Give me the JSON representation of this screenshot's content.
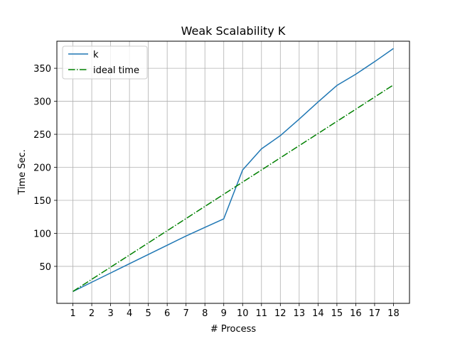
{
  "chart_data": {
    "type": "line",
    "title": "Weak Scalability K",
    "xlabel": "# Process",
    "ylabel": "Time Sec.",
    "x": [
      1,
      2,
      3,
      4,
      5,
      6,
      7,
      8,
      9,
      10,
      11,
      12,
      13,
      14,
      15,
      16,
      17,
      18
    ],
    "xticks": [
      "1",
      "2",
      "3",
      "4",
      "5",
      "6",
      "7",
      "8",
      "9",
      "10",
      "11",
      "12",
      "13",
      "14",
      "15",
      "16",
      "17",
      "18"
    ],
    "yticks": [
      50,
      100,
      150,
      200,
      250,
      300,
      350
    ],
    "xlim": [
      0.15,
      18.85
    ],
    "ylim": [
      -6,
      391
    ],
    "grid": true,
    "legend_position": "top-left",
    "series": [
      {
        "name": "k",
        "color": "#1f77b4",
        "linestyle": "solid",
        "values": [
          12,
          26,
          40,
          54,
          68,
          82,
          96,
          109,
          122,
          196,
          228,
          248,
          273,
          299,
          324,
          341,
          360,
          380
        ]
      },
      {
        "name": "ideal time",
        "color": "#008000",
        "linestyle": "dashdot",
        "values": [
          12,
          30.4,
          48.8,
          67.2,
          85.6,
          104,
          122.4,
          140.8,
          159.2,
          177.6,
          196,
          214.4,
          232.8,
          251.2,
          269.6,
          288,
          306.4,
          324.8
        ]
      }
    ]
  }
}
